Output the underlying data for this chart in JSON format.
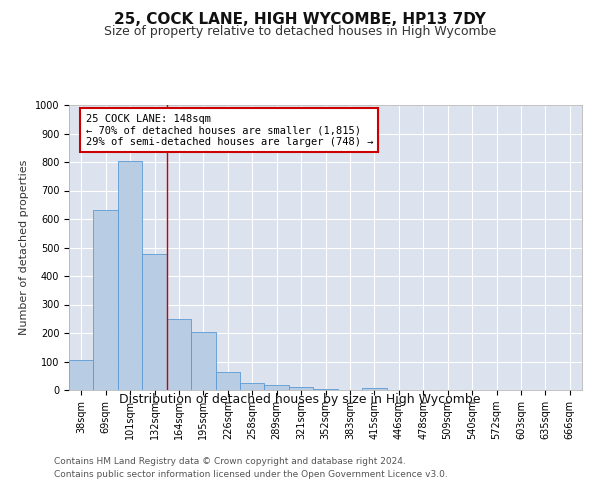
{
  "title1": "25, COCK LANE, HIGH WYCOMBE, HP13 7DY",
  "title2": "Size of property relative to detached houses in High Wycombe",
  "xlabel": "Distribution of detached houses by size in High Wycombe",
  "ylabel": "Number of detached properties",
  "categories": [
    "38sqm",
    "69sqm",
    "101sqm",
    "132sqm",
    "164sqm",
    "195sqm",
    "226sqm",
    "258sqm",
    "289sqm",
    "321sqm",
    "352sqm",
    "383sqm",
    "415sqm",
    "446sqm",
    "478sqm",
    "509sqm",
    "540sqm",
    "572sqm",
    "603sqm",
    "635sqm",
    "666sqm"
  ],
  "values": [
    107,
    630,
    805,
    478,
    248,
    205,
    62,
    25,
    17,
    11,
    4,
    0,
    8,
    0,
    0,
    0,
    0,
    0,
    0,
    0,
    0
  ],
  "bar_color": "#b8cce4",
  "bar_edgecolor": "#5b9bd5",
  "bar_linewidth": 0.6,
  "vline_x": 3.5,
  "vline_color": "#cc0000",
  "annotation_line1": "25 COCK LANE: 148sqm",
  "annotation_line2": "← 70% of detached houses are smaller (1,815)",
  "annotation_line3": "29% of semi-detached houses are larger (748) →",
  "box_edgecolor": "#cc0000",
  "ylim": [
    0,
    1000
  ],
  "yticks": [
    0,
    100,
    200,
    300,
    400,
    500,
    600,
    700,
    800,
    900,
    1000
  ],
  "footer1": "Contains HM Land Registry data © Crown copyright and database right 2024.",
  "footer2": "Contains public sector information licensed under the Open Government Licence v3.0.",
  "bg_color": "#ffffff",
  "plot_bg_color": "#dde3ee",
  "grid_color": "#ffffff",
  "title1_fontsize": 11,
  "title2_fontsize": 9,
  "xlabel_fontsize": 9,
  "ylabel_fontsize": 8,
  "tick_fontsize": 7,
  "footer_fontsize": 6.5,
  "annotation_fontsize": 7.5
}
